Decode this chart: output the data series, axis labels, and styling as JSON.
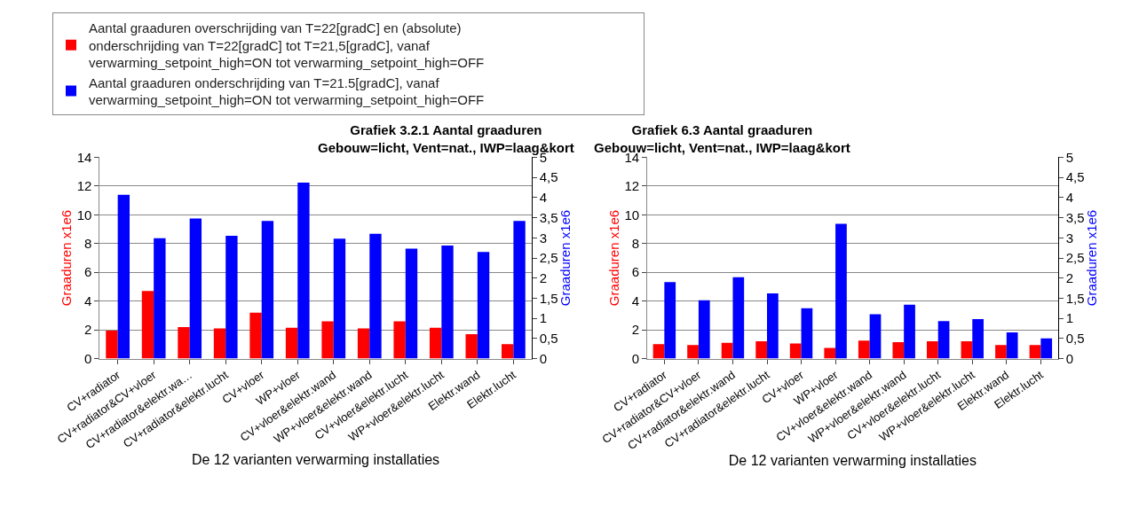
{
  "chart_data": [
    {
      "type": "bar",
      "title": "Grafiek 3.2.1 Aantal graaduren",
      "subtitle": "Gebouw=licht, Vent=nat., IWP=laag&kort",
      "xlabel": "De 12 varianten verwarming installaties",
      "ylabel": "Graaduren x1e6",
      "y2label": "Graaduren x1e6",
      "categories": [
        "CV+radiator",
        "CV+radiator&CV+vloer",
        "CV+radiator&elektr.wa…",
        "CV+radiator&elektr.lucht",
        "CV+vloer",
        "WP+vloer",
        "CV+vloer&elektr.wand",
        "WP+vloer&elektr.wand",
        "CV+vloer&elektr.lucht",
        "WP+vloer&elektr.lucht",
        "Elektr.wand",
        "Elektr.lucht"
      ],
      "series": [
        {
          "name": "Aantal graaduren overschrijding van T=22[gradC] en (absolute) onderschrijding van T=22[gradC] tot T=21,5[gradC], vanaf verwarming_setpoint_high=ON tot verwarming_setpoint_high=OFF",
          "color": "#ff0000",
          "values": [
            1.95,
            4.7,
            2.2,
            2.1,
            3.2,
            2.15,
            2.6,
            2.1,
            2.6,
            2.15,
            1.7,
            1.0
          ]
        },
        {
          "name": "Aantal graaduren onderschrijding van T=21.5[gradC], vanaf verwarming_setpoint_high=ON tot verwarming_setpoint_high=OFF",
          "color": "#0000ff",
          "axis": "y2",
          "values": [
            4.07,
            2.99,
            3.48,
            3.05,
            3.42,
            4.37,
            2.98,
            3.1,
            2.73,
            2.81,
            2.65,
            3.42
          ]
        }
      ],
      "ylim": [
        0,
        14
      ],
      "yticks": [
        0,
        2,
        4,
        6,
        8,
        10,
        12,
        14
      ],
      "y2lim": [
        0,
        5
      ],
      "y2ticks": [
        0,
        {
          "value": 0.5,
          "label": "0,5"
        },
        1,
        {
          "value": 1.5,
          "label": "1,5"
        },
        2,
        {
          "value": 2.5,
          "label": "2,5"
        },
        3,
        {
          "value": 3.5,
          "label": "3,5"
        },
        4,
        {
          "value": 4.5,
          "label": "4,5"
        },
        5
      ],
      "grid": "y",
      "legend": "top"
    },
    {
      "type": "bar",
      "title": "Grafiek 6.3 Aantal graaduren",
      "subtitle": "Gebouw=licht, Vent=nat., IWP=laag&kort",
      "xlabel": "De 12 varianten verwarming installaties",
      "ylabel": "Graaduren x1e6",
      "y2label": "Graaduren x1e6",
      "categories": [
        "CV+radiator",
        "CV+radiator&CV+vloer",
        "CV+radiator&elektr.wand",
        "CV+radiator&elektr.lucht",
        "CV+vloer",
        "WP+vloer",
        "CV+vloer&elektr.wand",
        "WP+vloer&elektr.wand",
        "CV+vloer&elektr.lucht",
        "WP+vloer&elektr.lucht",
        "Elektr.wand",
        "Elektr.lucht"
      ],
      "series": [
        {
          "color": "#ff0000",
          "values": [
            1.0,
            0.95,
            1.1,
            1.2,
            1.05,
            0.75,
            1.25,
            1.15,
            1.2,
            1.2,
            0.95,
            0.95
          ]
        },
        {
          "color": "#0000ff",
          "axis": "y2",
          "values": [
            1.9,
            1.45,
            2.02,
            1.62,
            1.25,
            3.35,
            1.1,
            1.34,
            0.93,
            0.98,
            0.65,
            0.5
          ]
        }
      ],
      "ylim": [
        0,
        14
      ],
      "yticks": [
        0,
        2,
        4,
        6,
        8,
        10,
        12,
        14
      ],
      "y2lim": [
        0,
        5
      ],
      "y2ticks": [
        0,
        {
          "value": 0.5,
          "label": "0,5"
        },
        1,
        {
          "value": 1.5,
          "label": "1,5"
        },
        2,
        {
          "value": 2.5,
          "label": "2,5"
        },
        3,
        {
          "value": 3.5,
          "label": "3,5"
        },
        4,
        {
          "value": 4.5,
          "label": "4,5"
        },
        5
      ],
      "grid": "y"
    }
  ]
}
